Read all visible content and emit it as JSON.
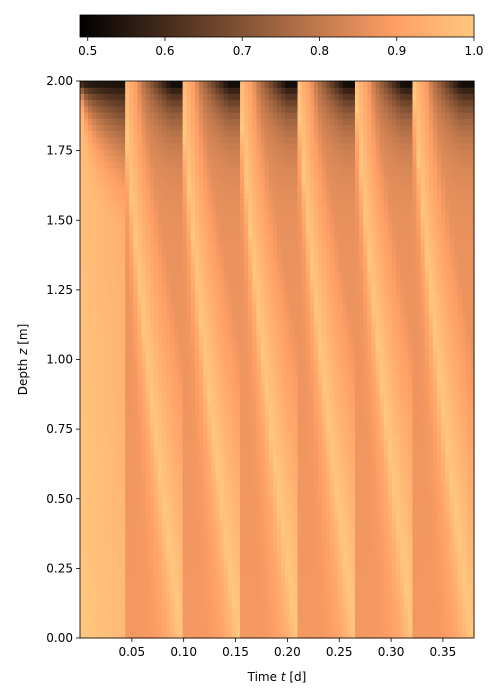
{
  "chart_data": {
    "type": "heatmap",
    "title": "",
    "xlabel": "Time t [d]",
    "xlabel_parts": [
      "Time ",
      "t",
      " [d]"
    ],
    "ylabel": "Depth z [m]",
    "ylabel_parts": [
      "Depth ",
      "z",
      " [m]"
    ],
    "xlim": [
      0.0,
      0.38
    ],
    "ylim": [
      0.0,
      2.0
    ],
    "x_ticks": [
      0.05,
      0.1,
      0.15,
      0.2,
      0.25,
      0.3,
      0.35
    ],
    "x_tick_labels": [
      "0.05",
      "0.10",
      "0.15",
      "0.20",
      "0.25",
      "0.30",
      "0.35"
    ],
    "y_ticks": [
      0.0,
      0.25,
      0.5,
      0.75,
      1.0,
      1.25,
      1.5,
      1.75,
      2.0
    ],
    "y_tick_labels": [
      "0.00",
      "0.25",
      "0.50",
      "0.75",
      "1.00",
      "1.25",
      "1.50",
      "1.75",
      "2.00"
    ],
    "colorbar": {
      "orientation": "horizontal",
      "position": "top",
      "colormap": "copper",
      "range": [
        0.49,
        1.0
      ],
      "ticks": [
        0.5,
        0.6,
        0.7,
        0.8,
        0.9,
        1.0
      ],
      "tick_labels": [
        "0.5",
        "0.6",
        "0.7",
        "0.8",
        "0.9",
        "1.0"
      ]
    },
    "pulse_start_times_d": [
      0.0,
      0.042,
      0.098,
      0.154,
      0.21,
      0.266,
      0.322
    ],
    "value_ranges": {
      "surface_min": 0.49,
      "background": 0.88,
      "max": 1.0
    },
    "grid": false
  }
}
